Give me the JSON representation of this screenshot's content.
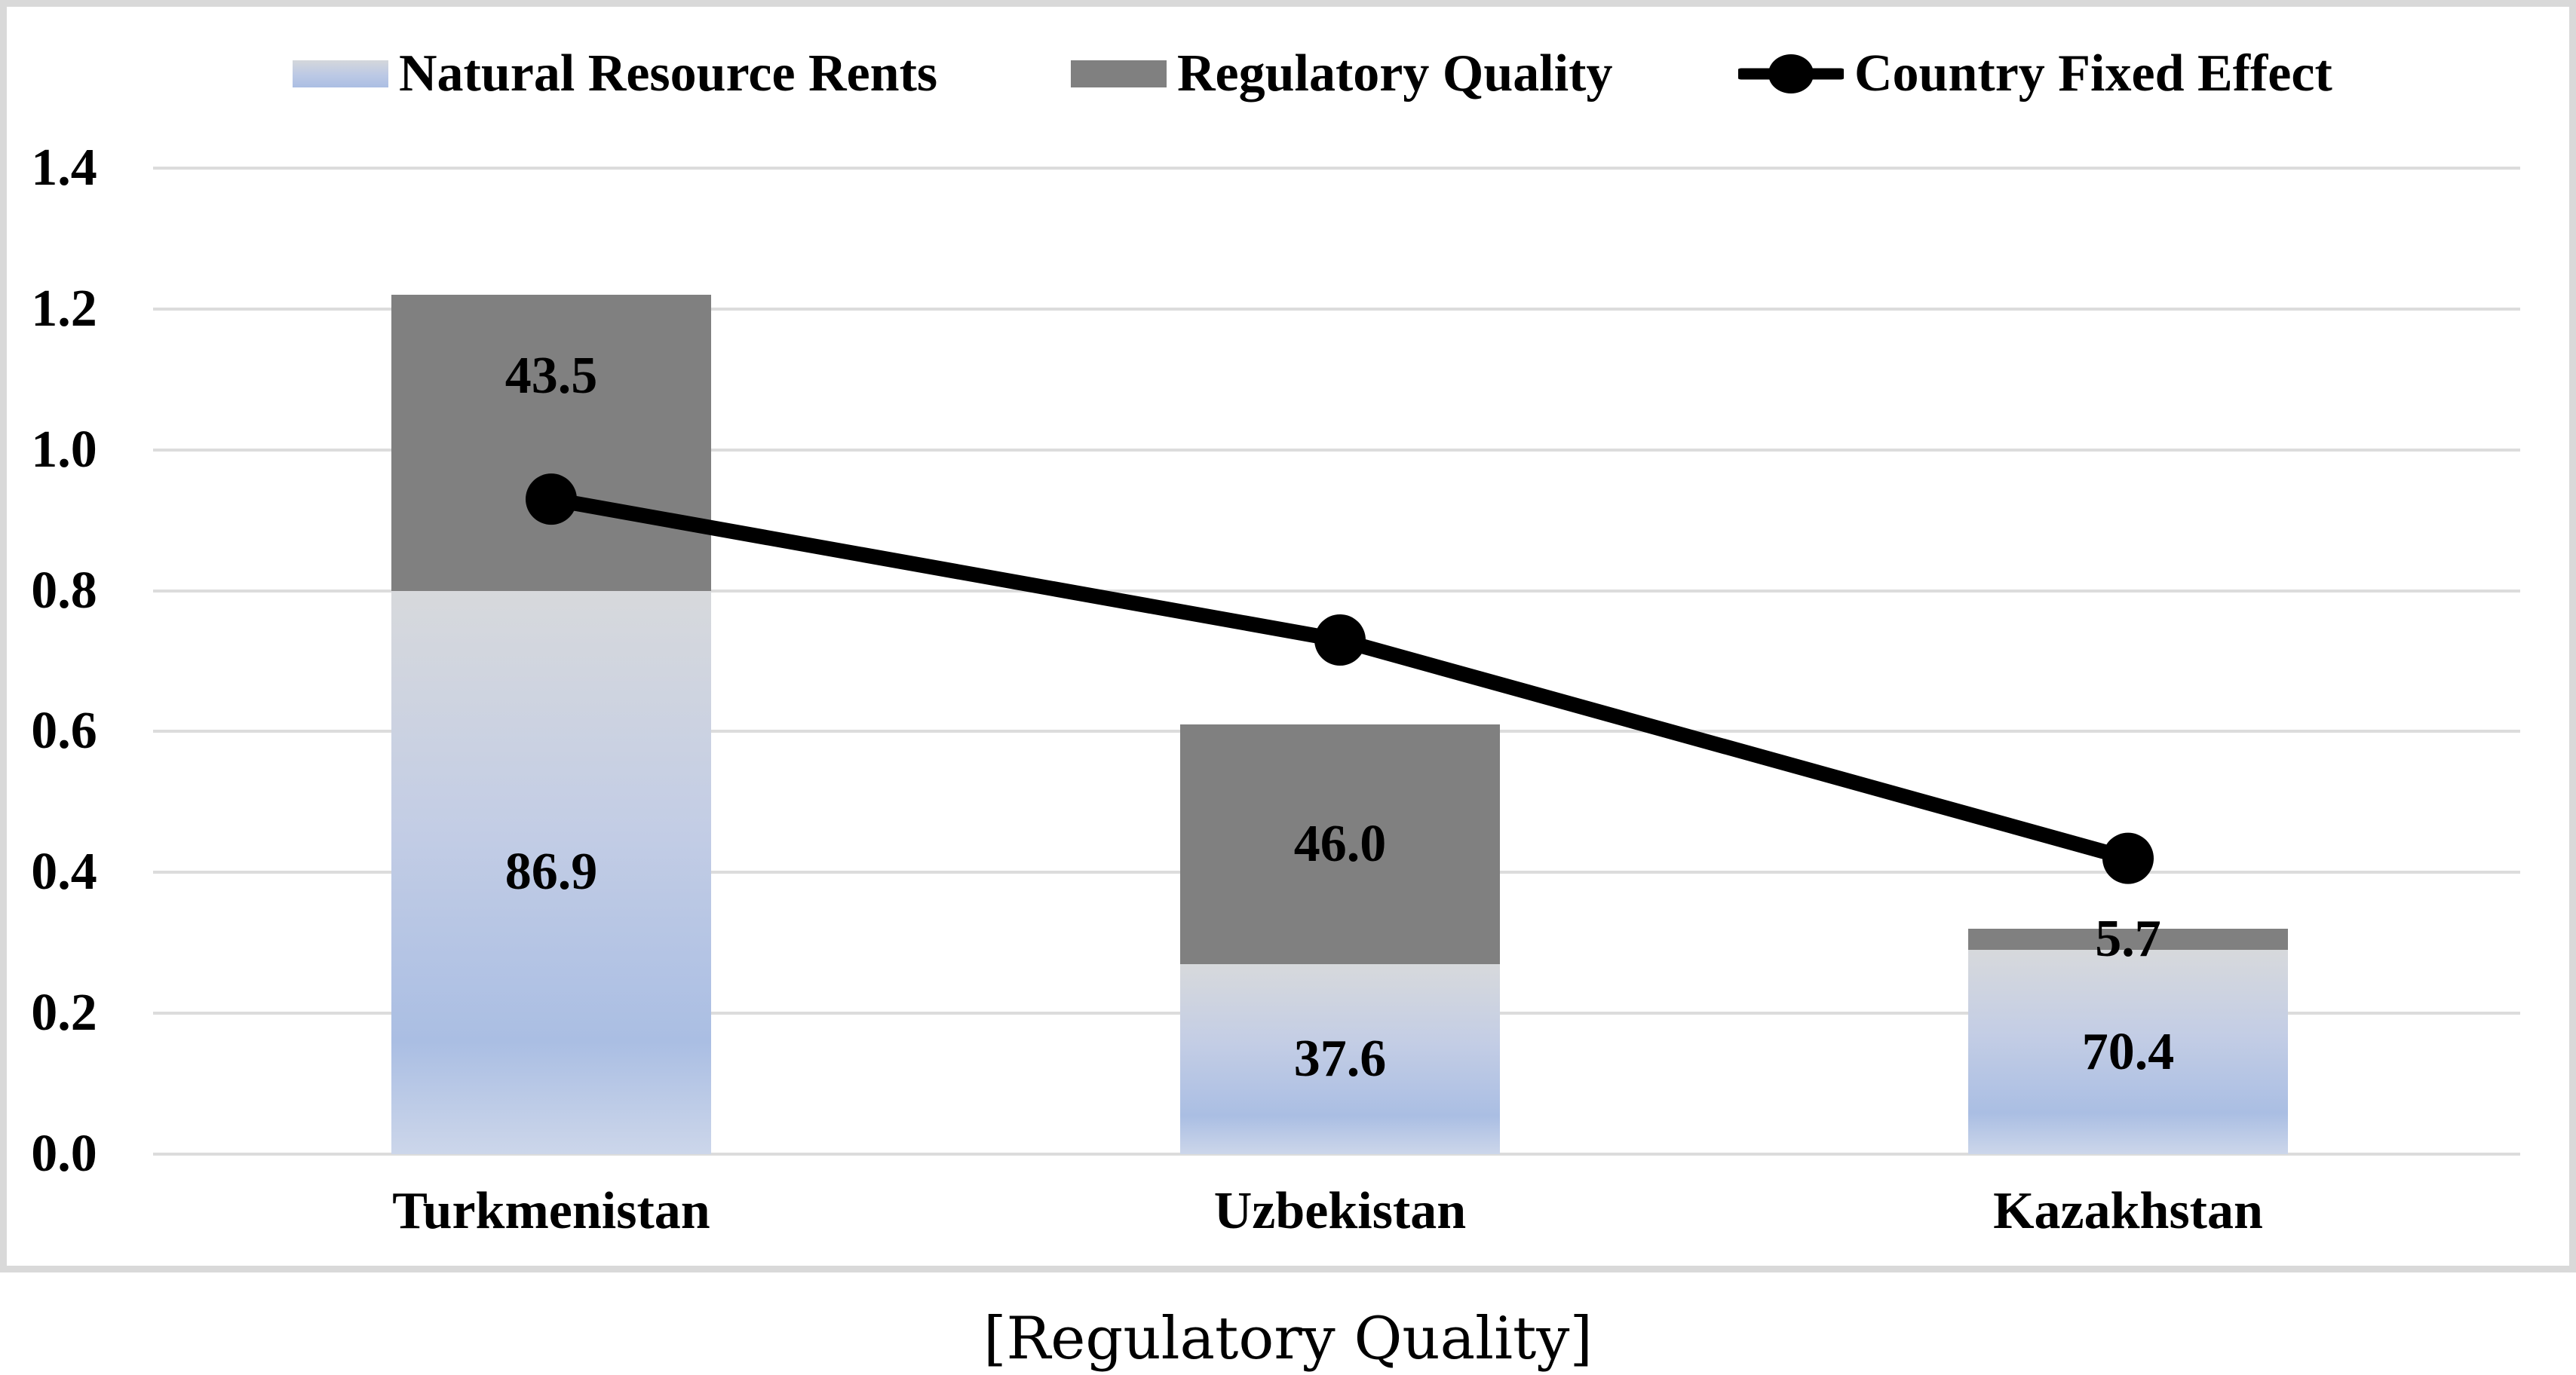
{
  "legend": {
    "items": [
      {
        "label": "Natural Resource Rents",
        "swatch": "blue-gradient-swatch"
      },
      {
        "label": "Regulatory Quality",
        "swatch": "gray-swatch"
      },
      {
        "label": "Country Fixed Effect",
        "swatch": "line-marker-swatch"
      }
    ]
  },
  "chart_data": {
    "type": "combo-stacked-bar-line",
    "title": "",
    "caption": "[Regulatory Quality]",
    "categories": [
      "Turkmenistan",
      "Uzbekistan",
      "Kazakhstan"
    ],
    "series": [
      {
        "name": "Natural Resource Rents",
        "type": "bar",
        "stacked": true,
        "values": [
          0.8,
          0.27,
          0.29
        ],
        "data_labels": [
          "86.9",
          "37.6",
          "70.4"
        ],
        "fill": "blue-gradient"
      },
      {
        "name": "Regulatory Quality",
        "type": "bar",
        "stacked": true,
        "values": [
          0.42,
          0.34,
          0.03
        ],
        "data_labels": [
          "43.5",
          "46.0",
          "5.7"
        ],
        "fill": "#808080"
      },
      {
        "name": "Country Fixed Effect",
        "type": "line",
        "values": [
          0.93,
          0.73,
          0.42
        ],
        "color": "#000000",
        "marker": "filled-circle"
      }
    ],
    "ylim": [
      0.0,
      1.4
    ],
    "ytick_step": 0.2,
    "yticks_top_to_bottom": [
      "1.4",
      "1.2",
      "1.0",
      "0.8",
      "0.6",
      "0.4",
      "0.2",
      "0.0"
    ],
    "grid": true,
    "legend_position": "top",
    "colors": {
      "bar_gray": "#808080",
      "bar_blue_top": "#d7d9dc",
      "bar_blue_mid": "#aabee3",
      "bar_blue_bottom": "#ccd6ea",
      "gridline": "#dcdcdc",
      "frame_border": "#d9d9d9",
      "line_series": "#000000",
      "text": "#000000"
    }
  }
}
